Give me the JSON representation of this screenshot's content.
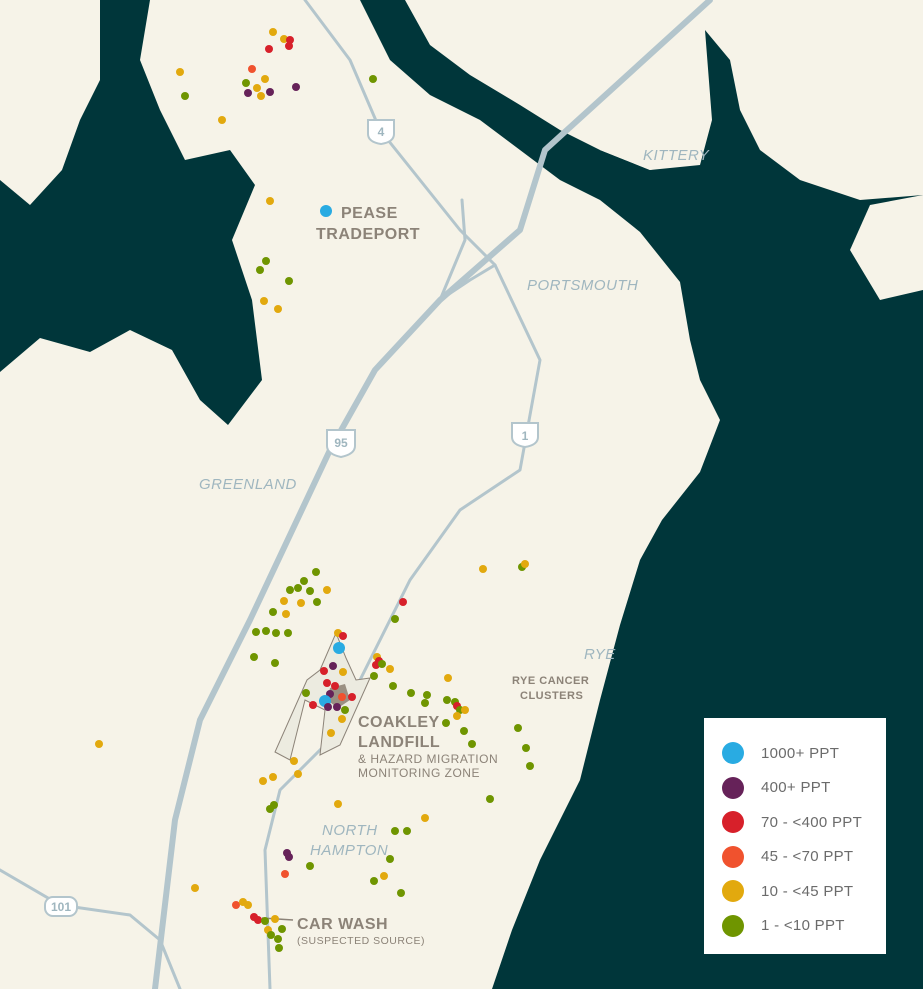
{
  "colors": {
    "land": "#f6f3e8",
    "water": "#00363a",
    "road": "#b3c5cc",
    "zone": "#ecebe0"
  },
  "labels": {
    "pease": [
      "PEASE",
      "TRADEPORT"
    ],
    "kittery": "KITTERY",
    "portsmouth": "PORTSMOUTH",
    "greenland": "GREENLAND",
    "rye": "RYE",
    "north_hampton": [
      "NORTH",
      "HAMPTON"
    ],
    "rye_cancer": [
      "RYE CANCER",
      "CLUSTERS"
    ],
    "coakley": [
      "COAKLEY",
      "LANDFILL"
    ],
    "coakley_sub": [
      "& HAZARD MIGRATION",
      "MONITORING ZONE"
    ],
    "car_wash": "CAR WASH",
    "car_wash_sub": "(SUSPECTED SOURCE)"
  },
  "shields": {
    "rt4": "4",
    "i95": "95",
    "us1": "1",
    "rt101": "101"
  },
  "legend": [
    {
      "key": "b",
      "label": "1000+ PPT",
      "color": "#29abe2"
    },
    {
      "key": "p",
      "label": "400+ PPT",
      "color": "#662259"
    },
    {
      "key": "r",
      "label": "70 - <400 PPT",
      "color": "#d7202a"
    },
    {
      "key": "o",
      "label": "45 - <70 PPT",
      "color": "#f0522e"
    },
    {
      "key": "y",
      "label": "10 - <45 PPT",
      "color": "#e2a90e"
    },
    {
      "key": "g",
      "label": "1 - <10 PPT",
      "color": "#6f9500"
    }
  ]
}
